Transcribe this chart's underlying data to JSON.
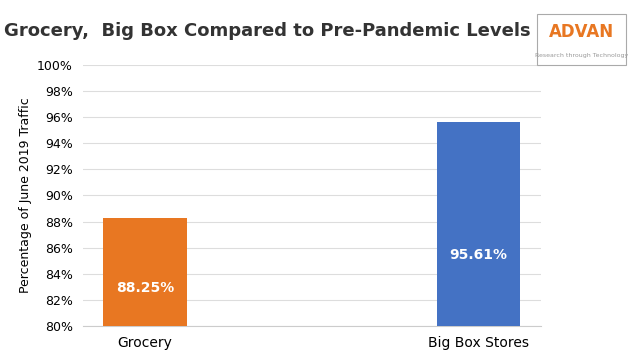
{
  "title": "Grocery,  Big Box Compared to Pre-Pandemic Levels",
  "ylabel": "Percentage of June 2019 Traffic",
  "categories": [
    "Grocery",
    "Big Box Stores"
  ],
  "values": [
    88.25,
    95.61
  ],
  "bar_colors": [
    "#E87722",
    "#4472C4"
  ],
  "bar_labels": [
    "88.25%",
    "95.61%"
  ],
  "label_color": "#FFFFFF",
  "ylim_min": 80,
  "ylim_max": 100,
  "yticks": [
    80,
    82,
    84,
    86,
    88,
    90,
    92,
    94,
    96,
    98,
    100
  ],
  "ytick_labels": [
    "80%",
    "82%",
    "84%",
    "86%",
    "88%",
    "90%",
    "92%",
    "94%",
    "96%",
    "98%",
    "100%"
  ],
  "title_fontsize": 13,
  "ylabel_fontsize": 9,
  "tick_fontsize": 9,
  "label_fontsize": 10,
  "background_color": "#FFFFFF",
  "grid_color": "#DDDDDD",
  "advan_text": "ADVAN",
  "advan_sub": "Research through Technology",
  "advan_color": "#E87722",
  "advan_sub_color": "#999999",
  "bar_width": 0.25
}
